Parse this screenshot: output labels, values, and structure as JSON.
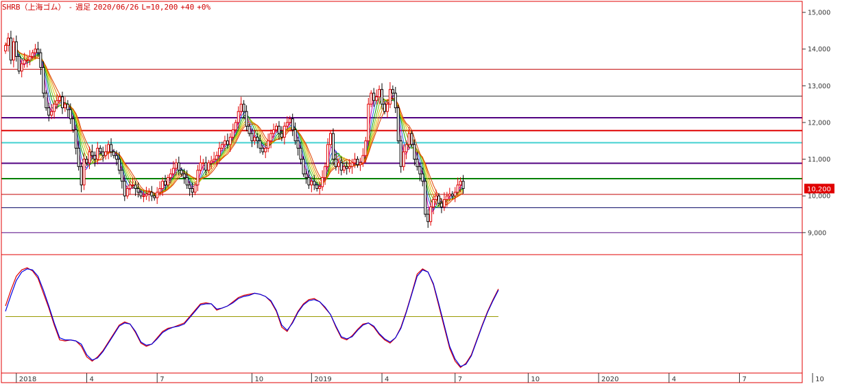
{
  "header": {
    "symbol": "SHRB（上海ゴム）",
    "sep": "-",
    "period": "週足",
    "date": "2020/06/26",
    "last": "L=10,200",
    "change": "+40",
    "pct": "+0%"
  },
  "last_price_label": "10,200",
  "colors": {
    "border": "#e00000",
    "up": "#e00000",
    "down": "#000000",
    "k_line": "#e00000",
    "d_line": "#0000e0",
    "osc_mid": "#999900",
    "ribbon": [
      "#c000c0",
      "#2060e0",
      "#00a000",
      "#80c000",
      "#e0c000",
      "#e08000",
      "#e04000"
    ]
  },
  "chart_data": [
    {
      "type": "candlestick",
      "ylim": [
        8400,
        15300
      ],
      "y_ticks": [
        "15,000",
        "14,000",
        "13,000",
        "12,000",
        "11,000",
        "10,000",
        "9,000"
      ],
      "y_tick_values": [
        15000,
        14000,
        13000,
        12000,
        11000,
        10000,
        9000
      ],
      "x_ticks": [
        "2018",
        "4",
        "7",
        "10",
        "2019",
        "4",
        "7",
        "10",
        "2020",
        "4",
        "7",
        "10"
      ],
      "x_tick_weeks": [
        4,
        30,
        56,
        91,
        113,
        139,
        166,
        193,
        219,
        245,
        271,
        298
      ],
      "horizontal_lines": [
        {
          "value": 13450,
          "color": "#c00000",
          "width": 1
        },
        {
          "value": 12720,
          "color": "#303030",
          "width": 1
        },
        {
          "value": 12130,
          "color": "#500080",
          "width": 2
        },
        {
          "value": 11780,
          "color": "#e00000",
          "width": 2
        },
        {
          "value": 11450,
          "color": "#40d0d0",
          "width": 2
        },
        {
          "value": 10890,
          "color": "#500080",
          "width": 2
        },
        {
          "value": 10470,
          "color": "#008000",
          "width": 2
        },
        {
          "value": 10040,
          "color": "#c00000",
          "width": 1
        },
        {
          "value": 9680,
          "color": "#000060",
          "width": 1
        },
        {
          "value": 9000,
          "color": "#500080",
          "width": 1
        }
      ],
      "closes": [
        14100,
        14300,
        13700,
        14200,
        13800,
        13400,
        13600,
        13700,
        13700,
        13800,
        13900,
        14000,
        13900,
        13500,
        12800,
        12400,
        12200,
        12300,
        12500,
        12600,
        12700,
        12400,
        12500,
        12350,
        12100,
        11800,
        11300,
        10800,
        10300,
        11000,
        10900,
        11200,
        11100,
        11000,
        11300,
        11200,
        11100,
        11200,
        11400,
        11200,
        11100,
        11000,
        10700,
        10400,
        10000,
        10200,
        10300,
        10300,
        10200,
        10100,
        10000,
        10000,
        10050,
        10100,
        10000,
        9950,
        10100,
        10200,
        10400,
        10300,
        10500,
        10600,
        10750,
        10900,
        10700,
        10600,
        10500,
        10300,
        10200,
        10100,
        10300,
        10700,
        10900,
        10900,
        10700,
        10900,
        10950,
        11000,
        11100,
        11300,
        11400,
        11500,
        11400,
        11600,
        11800,
        12000,
        12300,
        12500,
        12300,
        11900,
        11700,
        11500,
        11600,
        11500,
        11300,
        11200,
        11300,
        11500,
        11700,
        11800,
        11900,
        11700,
        11600,
        11900,
        12000,
        12100,
        11800,
        11500,
        11300,
        11000,
        10600,
        10500,
        10300,
        10400,
        10300,
        10200,
        10250,
        10500,
        10800,
        11400,
        11700,
        11000,
        10800,
        10900,
        10700,
        10800,
        10750,
        10800,
        10900,
        11000,
        10850,
        10900,
        11100,
        11500,
        12500,
        12800,
        12600,
        12700,
        12900,
        12500,
        12300,
        12500,
        12900,
        12800,
        12400,
        11500,
        10800,
        11200,
        11400,
        11700,
        11400,
        11000,
        10800,
        10600,
        10400,
        9500,
        9300,
        9700,
        9900,
        10000,
        9800,
        9700,
        9900,
        10000,
        10050,
        10000,
        10100,
        10300,
        10400,
        10200
      ],
      "data_label": "10,200"
    },
    {
      "type": "line",
      "series": [
        {
          "color": "#e00000",
          "values": [
            60,
            75,
            88,
            94,
            96,
            93,
            86,
            72,
            58,
            42,
            28,
            27,
            28,
            27,
            22,
            12,
            8,
            12,
            18,
            26,
            34,
            42,
            45,
            43,
            35,
            25,
            22,
            24,
            30,
            36,
            39,
            40,
            42,
            44,
            50,
            56,
            62,
            63,
            62,
            56,
            58,
            60,
            64,
            68,
            70,
            71,
            72,
            71,
            69,
            64,
            55,
            40,
            36,
            45,
            55,
            62,
            66,
            67,
            64,
            58,
            52,
            40,
            30,
            28,
            32,
            38,
            43,
            44,
            40,
            33,
            28,
            25,
            30,
            40,
            55,
            72,
            90,
            95,
            92,
            80,
            60,
            40,
            20,
            8,
            2,
            6,
            14,
            28,
            42,
            55,
            66,
            76
          ]
        },
        {
          "color": "#0000e0",
          "values": [
            55,
            70,
            84,
            92,
            95,
            94,
            88,
            75,
            60,
            44,
            30,
            28,
            28,
            27,
            24,
            14,
            9,
            11,
            17,
            25,
            33,
            41,
            44,
            43,
            36,
            26,
            23,
            24,
            29,
            35,
            38,
            40,
            41,
            43,
            49,
            55,
            61,
            62,
            62,
            57,
            58,
            60,
            63,
            67,
            69,
            70,
            72,
            71,
            69,
            65,
            56,
            42,
            37,
            44,
            54,
            61,
            65,
            66,
            64,
            59,
            52,
            41,
            31,
            29,
            31,
            37,
            42,
            44,
            41,
            34,
            29,
            26,
            30,
            39,
            54,
            71,
            88,
            94,
            92,
            81,
            62,
            42,
            22,
            10,
            3,
            5,
            13,
            27,
            41,
            54,
            65,
            75
          ]
        }
      ],
      "mid_line": 50,
      "ylim": [
        0,
        100
      ]
    }
  ]
}
